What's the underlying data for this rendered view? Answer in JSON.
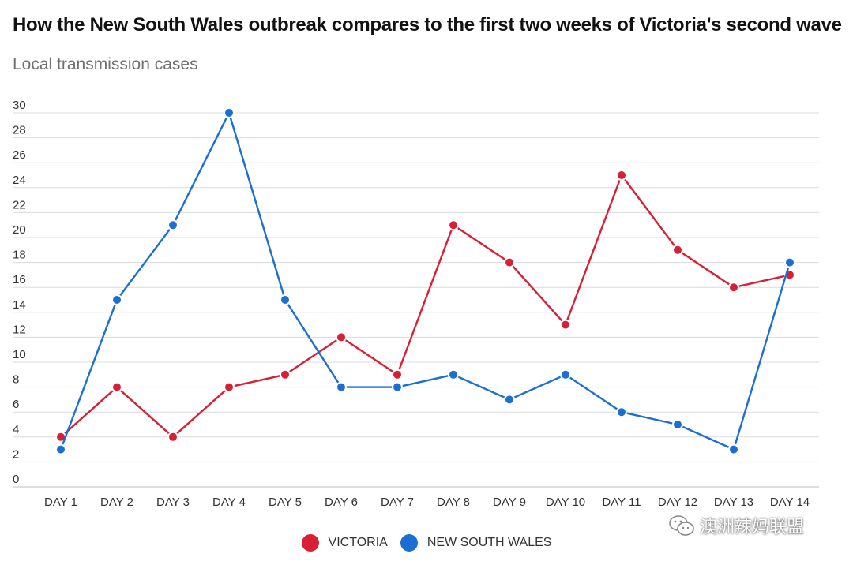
{
  "header": {
    "title": "How the New South Wales outbreak compares to the first two weeks of Victoria's second wave",
    "subtitle": "Local transmission cases"
  },
  "watermark": {
    "text": "澳洲辣妈联盟",
    "icon": "wechat-icon"
  },
  "colors": {
    "victoria": "#d71f36",
    "nsw": "#1b6fd2",
    "grid": "#dcdcdc",
    "tick": "#333333"
  },
  "chart_data": {
    "type": "line",
    "title": "How the New South Wales outbreak compares to the first two weeks of Victoria's second wave",
    "subtitle": "Local transmission cases",
    "categories": [
      "DAY 1",
      "DAY 2",
      "DAY 3",
      "DAY 4",
      "DAY 5",
      "DAY 6",
      "DAY 7",
      "DAY 8",
      "DAY 9",
      "DAY 10",
      "DAY 11",
      "DAY 12",
      "DAY 13",
      "DAY 14"
    ],
    "series": [
      {
        "name": "VICTORIA",
        "color": "#d71f36",
        "values": [
          4,
          8,
          4,
          8,
          9,
          12,
          9,
          21,
          18,
          13,
          25,
          19,
          16,
          17
        ]
      },
      {
        "name": "NEW SOUTH WALES",
        "color": "#1b6fd2",
        "values": [
          3,
          15,
          21,
          30,
          15,
          8,
          8,
          9,
          7,
          9,
          6,
          5,
          3,
          18
        ]
      }
    ],
    "yticks": [
      0,
      2,
      4,
      6,
      8,
      10,
      12,
      14,
      16,
      18,
      20,
      22,
      24,
      26,
      28,
      30
    ],
    "ylim": [
      0,
      30
    ],
    "grid": true,
    "legend_position": "bottom-center"
  }
}
